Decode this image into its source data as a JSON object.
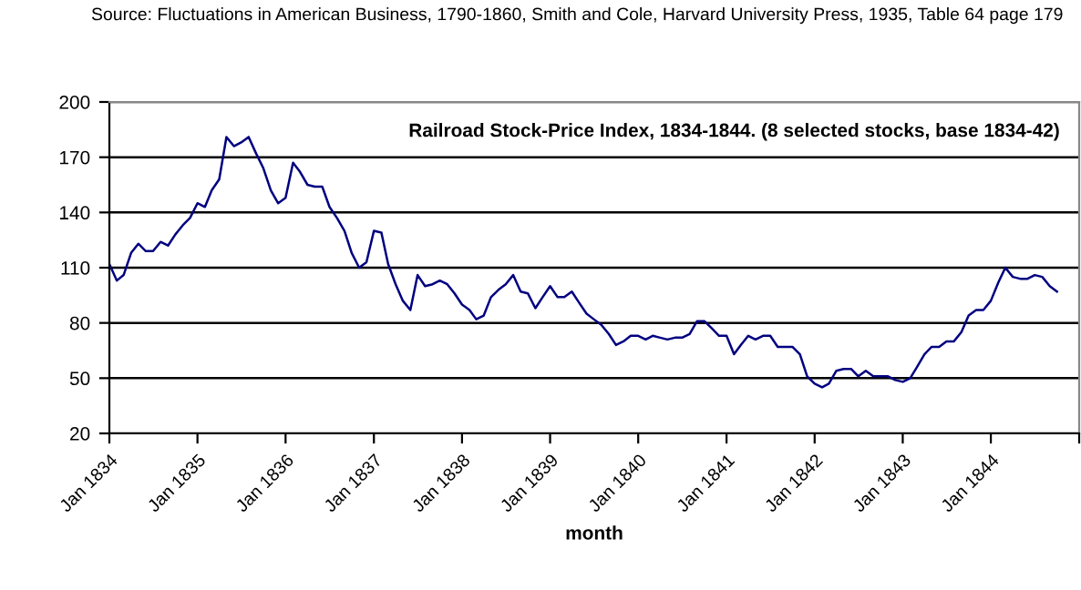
{
  "chart_data": {
    "type": "line",
    "title": "Railroad Stock-Price Index, 1834-1844. (8 selected stocks, base 1834-42)",
    "xlabel": "month",
    "annotations": [
      "Source: Fluctuations in American Business, 1790-1860, Smith and Cole, Harvard University Press, 1935, Table 64 page 179"
    ],
    "x": [
      "1834-01",
      "1834-02",
      "1834-03",
      "1834-04",
      "1834-05",
      "1834-06",
      "1834-07",
      "1834-08",
      "1834-09",
      "1834-10",
      "1834-11",
      "1834-12",
      "1835-01",
      "1835-02",
      "1835-03",
      "1835-04",
      "1835-05",
      "1835-06",
      "1835-07",
      "1835-08",
      "1835-09",
      "1835-10",
      "1835-11",
      "1835-12",
      "1836-01",
      "1836-02",
      "1836-03",
      "1836-04",
      "1836-05",
      "1836-06",
      "1836-07",
      "1836-08",
      "1836-09",
      "1836-10",
      "1836-11",
      "1836-12",
      "1837-01",
      "1837-02",
      "1837-03",
      "1837-04",
      "1837-05",
      "1837-06",
      "1837-07",
      "1837-08",
      "1837-09",
      "1837-10",
      "1837-11",
      "1837-12",
      "1838-01",
      "1838-02",
      "1838-03",
      "1838-04",
      "1838-05",
      "1838-06",
      "1838-07",
      "1838-08",
      "1838-09",
      "1838-10",
      "1838-11",
      "1838-12",
      "1839-01",
      "1839-02",
      "1839-03",
      "1839-04",
      "1839-05",
      "1839-06",
      "1839-07",
      "1839-08",
      "1839-09",
      "1839-10",
      "1839-11",
      "1839-12",
      "1840-01",
      "1840-02",
      "1840-03",
      "1840-04",
      "1840-05",
      "1840-06",
      "1840-07",
      "1840-08",
      "1840-09",
      "1840-10",
      "1840-11",
      "1840-12",
      "1841-01",
      "1841-02",
      "1841-03",
      "1841-04",
      "1841-05",
      "1841-06",
      "1841-07",
      "1841-08",
      "1841-09",
      "1841-10",
      "1841-11",
      "1841-12",
      "1842-01",
      "1842-02",
      "1842-03",
      "1842-04",
      "1842-05",
      "1842-06",
      "1842-07",
      "1842-08",
      "1842-09",
      "1842-10",
      "1842-11",
      "1842-12",
      "1843-01",
      "1843-02",
      "1843-03",
      "1843-04",
      "1843-05",
      "1843-06",
      "1843-07",
      "1843-08",
      "1843-09",
      "1843-10",
      "1843-11",
      "1843-12",
      "1844-01",
      "1844-02",
      "1844-03",
      "1844-04",
      "1844-05",
      "1844-06",
      "1844-07",
      "1844-08",
      "1844-09",
      "1844-10"
    ],
    "series": [
      {
        "color": "#000080",
        "values": [
          112,
          103,
          106,
          118,
          123,
          119,
          119,
          124,
          122,
          128,
          133,
          137,
          145,
          143,
          152,
          158,
          181,
          176,
          178,
          181,
          172,
          164,
          152,
          145,
          148,
          167,
          162,
          155,
          154,
          154,
          143,
          137,
          130,
          118,
          110,
          113,
          130,
          129,
          112,
          101,
          92,
          87,
          106,
          100,
          101,
          103,
          101,
          96,
          90,
          87,
          82,
          84,
          94,
          98,
          101,
          106,
          97,
          96,
          88,
          94,
          100,
          94,
          94,
          97,
          91,
          85,
          82,
          79,
          74,
          68,
          70,
          73,
          73,
          71,
          73,
          72,
          71,
          72,
          72,
          74,
          81,
          81,
          77,
          73,
          73,
          63,
          68,
          73,
          71,
          73,
          73,
          67,
          67,
          67,
          63,
          51,
          47,
          45,
          47,
          54,
          55,
          55,
          51,
          54,
          51,
          51,
          51,
          49,
          48,
          50,
          56,
          63,
          67,
          67,
          70,
          70,
          75,
          84,
          87,
          87,
          92,
          102,
          110,
          105,
          104,
          104,
          106,
          105,
          100,
          97
        ]
      }
    ],
    "xlim": [
      "1834-01",
      "1845-01"
    ],
    "xticks": [
      {
        "value": "1834-01",
        "label": "Jan 1834"
      },
      {
        "value": "1835-01",
        "label": "Jan 1835"
      },
      {
        "value": "1836-01",
        "label": "Jan 1836"
      },
      {
        "value": "1837-01",
        "label": "Jan 1837"
      },
      {
        "value": "1838-01",
        "label": "Jan 1838"
      },
      {
        "value": "1839-01",
        "label": "Jan 1839"
      },
      {
        "value": "1840-01",
        "label": "Jan 1840"
      },
      {
        "value": "1841-01",
        "label": "Jan 1841"
      },
      {
        "value": "1842-01",
        "label": "Jan 1842"
      },
      {
        "value": "1843-01",
        "label": "Jan 1843"
      },
      {
        "value": "1844-01",
        "label": "Jan 1844"
      },
      {
        "value": "1845-01",
        "label": null
      }
    ],
    "ylim": [
      20,
      200
    ],
    "yticks": [
      20,
      50,
      80,
      110,
      140,
      170,
      200
    ],
    "grid": "y",
    "marker": "none",
    "line_style": "solid"
  }
}
